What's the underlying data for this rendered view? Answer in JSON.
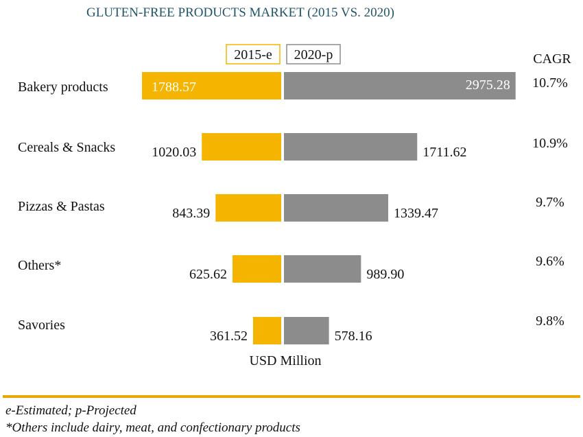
{
  "chart_data": {
    "type": "bar",
    "title": "GLUTEN-FREE PRODUCTS MARKET (2015 VS. 2020)",
    "categories": [
      "Bakery products",
      "Cereals & Snacks",
      "Pizzas & Pastas",
      "Others*",
      "Savories"
    ],
    "series": [
      {
        "name": "2015-e",
        "values": [
          1788.57,
          1020.03,
          843.39,
          625.62,
          361.52
        ],
        "labels": [
          "1788.57",
          "1020.03",
          "843.39",
          "625.62",
          "361.52"
        ],
        "color": "#f5b400"
      },
      {
        "name": "2020-p",
        "values": [
          2975.28,
          1711.62,
          1339.47,
          989.9,
          578.16
        ],
        "labels": [
          "2975.28",
          "1711.62",
          "1339.47",
          "989.90",
          "578.16"
        ],
        "color": "#8c8c8c"
      }
    ],
    "cagr_header": "CAGR",
    "cagr": [
      "10.7%",
      "10.9%",
      "9.7%",
      "9.6%",
      "9.8%"
    ],
    "xlabel": "USD Million",
    "legend_position": "top-center"
  },
  "divider_color": "#e8a800",
  "footnotes": {
    "line1": "e-Estimated; p-Projected",
    "line2": "*Others include dairy, meat, and confectionary products"
  }
}
